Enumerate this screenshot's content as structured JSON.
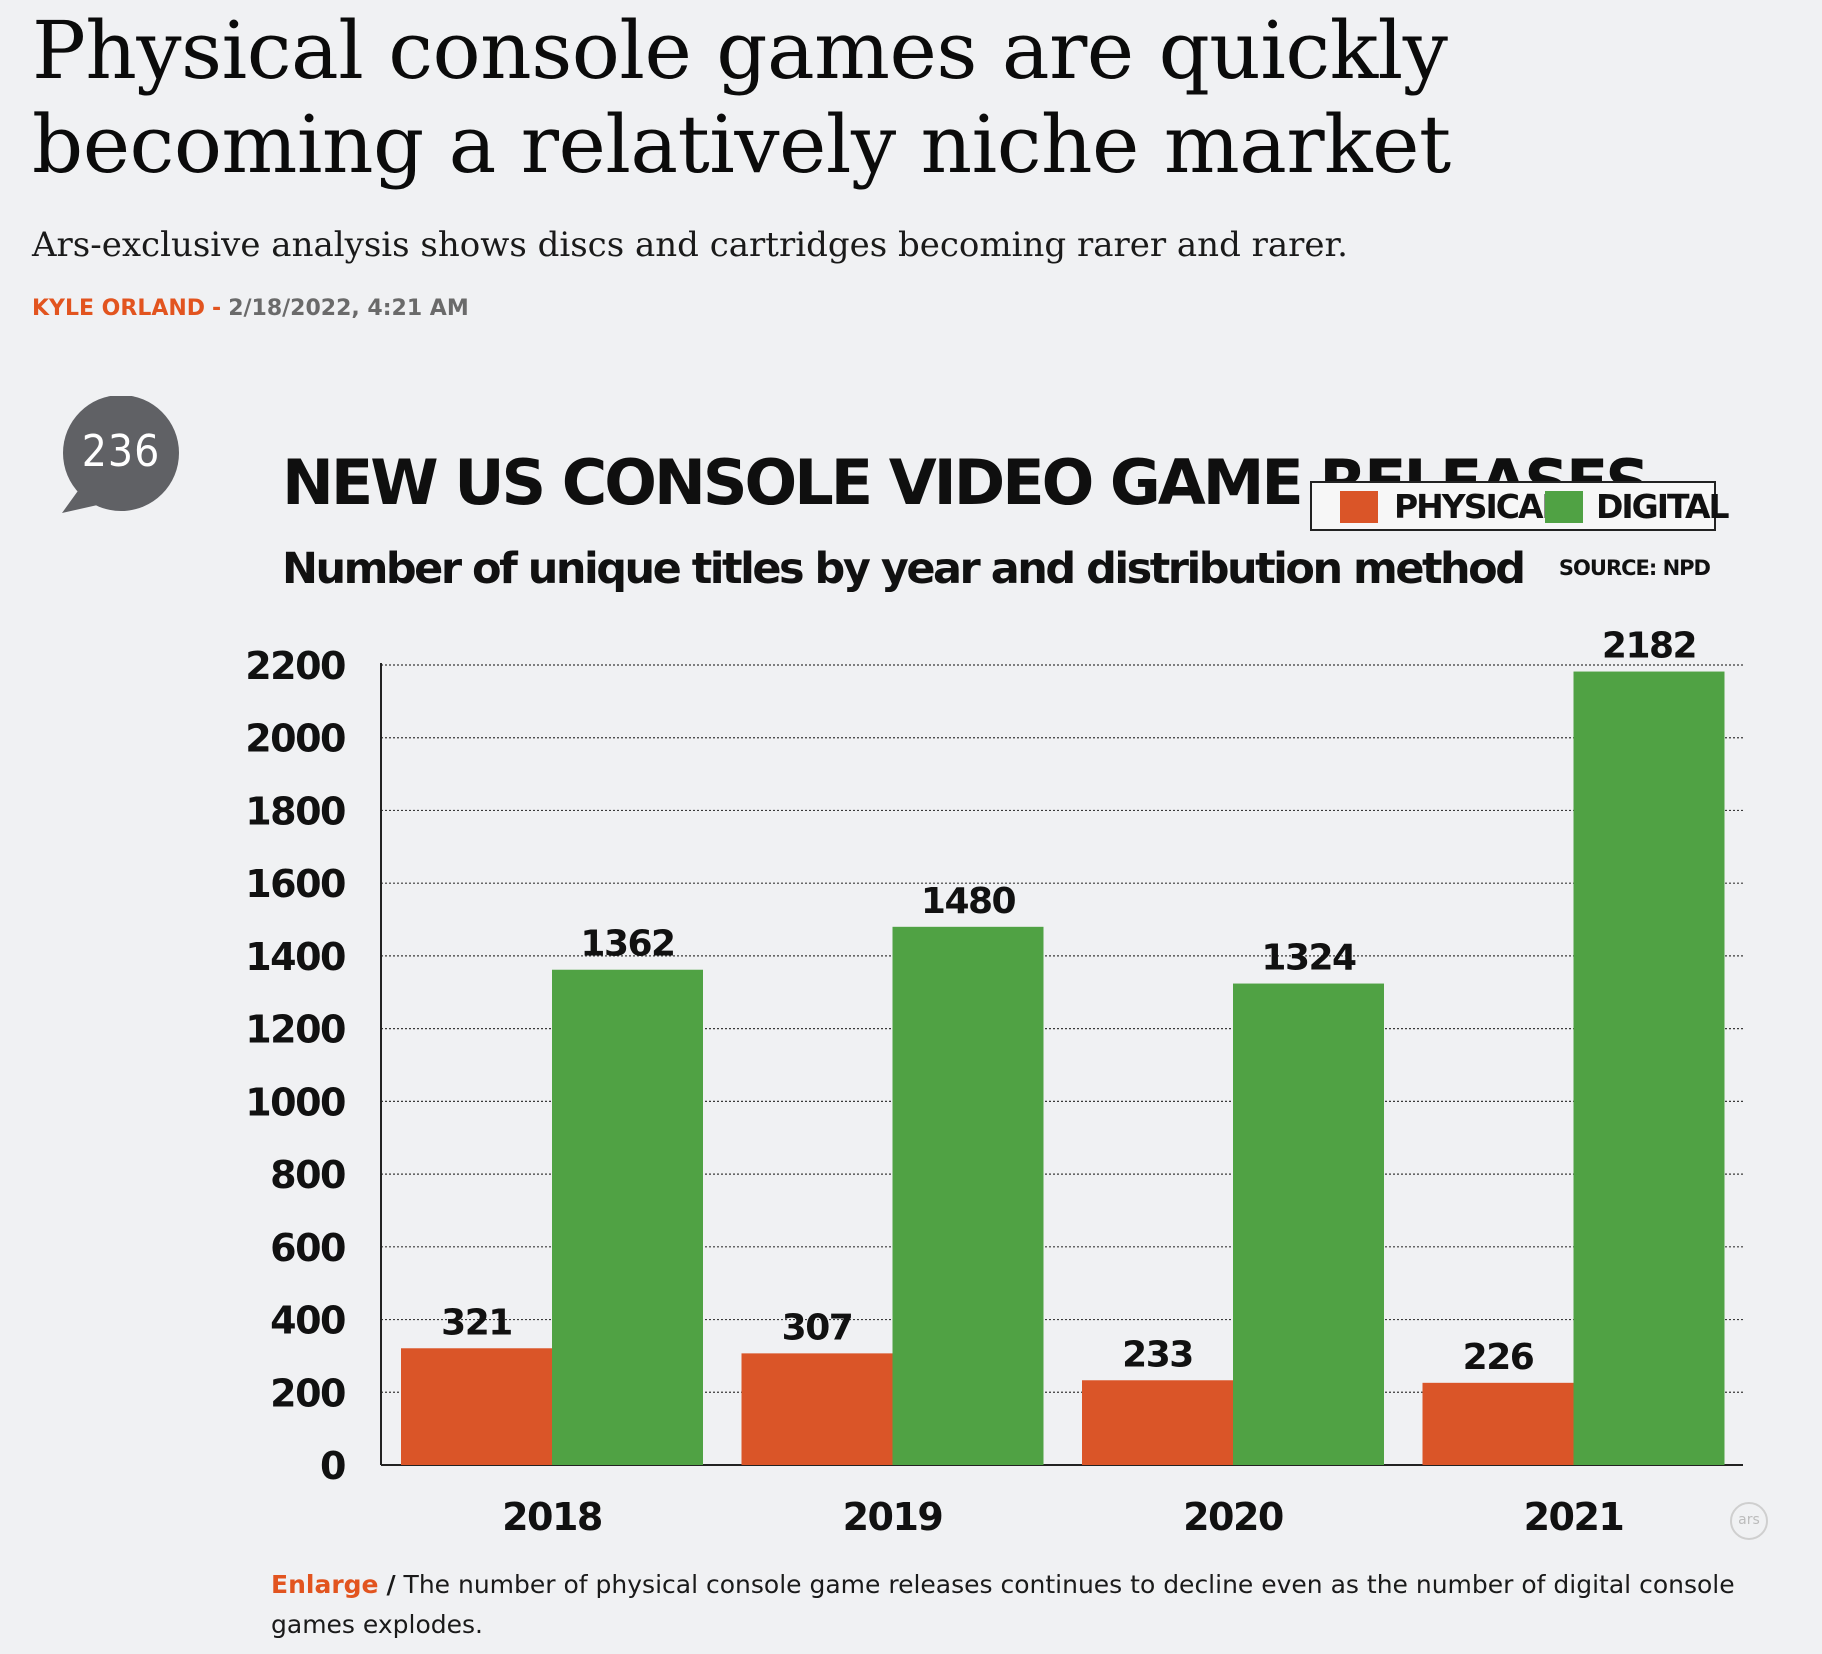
{
  "article": {
    "headline": "Physical console games are quickly becoming a relatively niche market",
    "dek": "Ars-exclusive analysis shows discs and cartridges becoming rarer and rarer.",
    "author": "KYLE ORLAND",
    "byline_separator": "-",
    "date": "2/18/2022, 4:21 AM",
    "comment_count": "236"
  },
  "figure": {
    "enlarge_label": "Enlarge",
    "caption_separator": "/",
    "caption": "The number of physical console game releases continues to decline even as the number of digital console games explodes.",
    "badge_text": "ars"
  },
  "colors": {
    "physical": "#da5528",
    "digital": "#50a244",
    "accent": "#e2541f",
    "comment_bubble": "#606165"
  },
  "chart_data": {
    "type": "bar",
    "title": "NEW US CONSOLE VIDEO GAME RELEASES",
    "subtitle": "Number of unique titles by year and distribution method",
    "source": "SOURCE: NPD",
    "categories": [
      "2018",
      "2019",
      "2020",
      "2021"
    ],
    "series": [
      {
        "name": "PHYSICAL",
        "values": [
          321,
          307,
          233,
          226
        ]
      },
      {
        "name": "DIGITAL",
        "values": [
          1362,
          1480,
          1324,
          2182
        ]
      }
    ],
    "ylim": [
      0,
      2200
    ],
    "yticks": [
      0,
      200,
      400,
      600,
      800,
      1000,
      1200,
      1400,
      1600,
      1800,
      2000,
      2200
    ],
    "grid": true,
    "legend_position": "top-right",
    "xlabel": "",
    "ylabel": ""
  }
}
